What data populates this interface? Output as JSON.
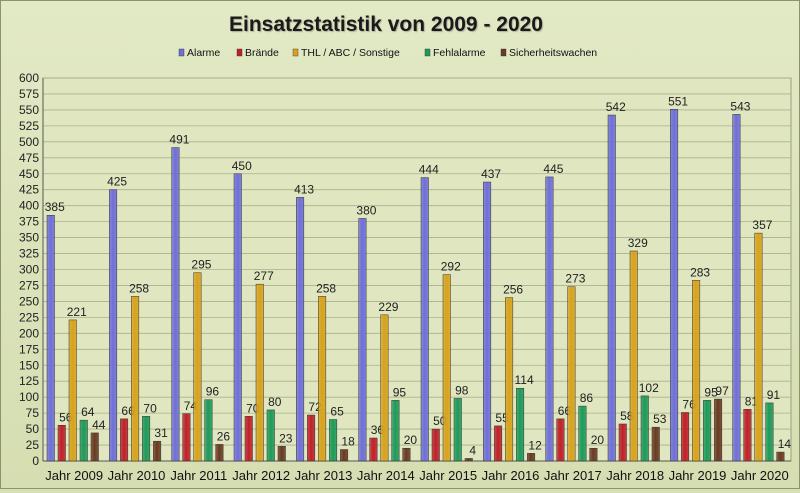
{
  "chart_data": {
    "type": "bar",
    "title": "Einsatzstatistik von 2009 - 2020",
    "xlabel": "",
    "ylabel": "",
    "ylim": [
      0,
      600
    ],
    "ytick_step": 25,
    "grid": true,
    "legend_position": "top",
    "categories": [
      "Jahr 2009",
      "Jahr 2010",
      "Jahr 2011",
      "Jahr 2012",
      "Jahr 2013",
      "Jahr 2014",
      "Jahr 2015",
      "Jahr 2016",
      "Jahr 2017",
      "Jahr 2018",
      "Jahr 2019",
      "Jahr 2020"
    ],
    "series": [
      {
        "name": "Alarme",
        "color": "#6f6fd8",
        "values": [
          385,
          425,
          491,
          450,
          413,
          380,
          444,
          437,
          445,
          542,
          551,
          543
        ]
      },
      {
        "name": "Brände",
        "color": "#c0202a",
        "values": [
          56,
          66,
          74,
          70,
          72,
          36,
          50,
          55,
          66,
          58,
          76,
          81
        ]
      },
      {
        "name": "THL / ABC / Sonstige",
        "color": "#d8a21c",
        "values": [
          221,
          258,
          295,
          277,
          258,
          229,
          292,
          256,
          273,
          329,
          283,
          357
        ]
      },
      {
        "name": "Fehlalarme",
        "color": "#1e9a5a",
        "values": [
          64,
          70,
          96,
          80,
          65,
          95,
          98,
          114,
          86,
          102,
          95,
          91
        ]
      },
      {
        "name": "Sicherheitswachen",
        "color": "#6a3a22",
        "values": [
          44,
          31,
          26,
          23,
          18,
          20,
          4,
          12,
          20,
          53,
          97,
          14
        ]
      }
    ]
  }
}
